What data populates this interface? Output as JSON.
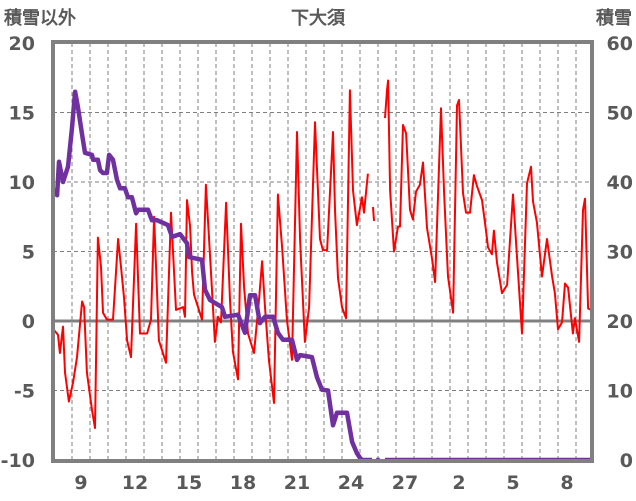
{
  "chart_data": {
    "type": "line",
    "title": "下大須",
    "ylabel_left": "積雪以外",
    "ylabel_right": "積雪",
    "x_unit": "days from start of the day labelled 9",
    "xlim": [
      -1.1,
      28.9
    ],
    "ylim_left": [
      -10,
      20
    ],
    "ylim_right": [
      0,
      60
    ],
    "yticks_left": [
      "20",
      "15",
      "10",
      "5",
      "0",
      "-5",
      "-10"
    ],
    "yticks_right": [
      "60",
      "50",
      "40",
      "30",
      "20",
      "10",
      "0"
    ],
    "xtick_labels": [
      "9",
      "12",
      "15",
      "18",
      "21",
      "24",
      "27",
      "2",
      "5",
      "8"
    ],
    "xtick_positions": [
      0.5,
      3.5,
      6.5,
      9.5,
      12.5,
      15.5,
      18.5,
      21.5,
      24.5,
      27.5
    ],
    "grid": true,
    "series": [
      {
        "name": "積雪以外",
        "axis": "left",
        "color": "#ff0000",
        "points": [
          [
            -1.0,
            -0.65
          ],
          [
            -0.78,
            -1.0
          ],
          [
            -0.67,
            -2.3
          ],
          [
            -0.5,
            -0.4
          ],
          [
            -0.39,
            -3.7
          ],
          [
            -0.17,
            -5.8
          ],
          [
            0.06,
            -4.4
          ],
          [
            0.28,
            -2.6
          ],
          [
            0.56,
            1.4
          ],
          [
            0.67,
            1.0
          ],
          [
            0.83,
            -3.7
          ],
          [
            1.11,
            -6.4
          ],
          [
            1.28,
            -7.7
          ],
          [
            1.44,
            6.0
          ],
          [
            1.61,
            3.9
          ],
          [
            1.72,
            0.6
          ],
          [
            1.94,
            0.1
          ],
          [
            2.28,
            0.1
          ],
          [
            2.56,
            5.9
          ],
          [
            2.72,
            3.9
          ],
          [
            2.89,
            1.7
          ],
          [
            3.06,
            -1.4
          ],
          [
            3.28,
            -2.6
          ],
          [
            3.56,
            7.0
          ],
          [
            3.78,
            -0.9
          ],
          [
            4.17,
            -0.9
          ],
          [
            4.39,
            0.1
          ],
          [
            4.56,
            7.5
          ],
          [
            4.83,
            -1.4
          ],
          [
            5.22,
            -3.0
          ],
          [
            5.5,
            7.8
          ],
          [
            5.78,
            0.8
          ],
          [
            6.17,
            1.0
          ],
          [
            6.28,
            0.3
          ],
          [
            6.39,
            8.7
          ],
          [
            6.56,
            6.8
          ],
          [
            6.67,
            3.5
          ],
          [
            6.78,
            1.9
          ],
          [
            7.0,
            1.0
          ],
          [
            7.22,
            0.1
          ],
          [
            7.44,
            9.8
          ],
          [
            7.56,
            7.1
          ],
          [
            7.72,
            3.5
          ],
          [
            7.94,
            -1.5
          ],
          [
            8.11,
            0.3
          ],
          [
            8.28,
            -0.1
          ],
          [
            8.56,
            8.5
          ],
          [
            8.78,
            1.5
          ],
          [
            8.94,
            -2.2
          ],
          [
            9.22,
            -4.2
          ],
          [
            9.39,
            7.0
          ],
          [
            9.56,
            2.4
          ],
          [
            9.78,
            -0.9
          ],
          [
            10.11,
            -2.3
          ],
          [
            10.39,
            1.5
          ],
          [
            10.56,
            4.3
          ],
          [
            10.72,
            1.0
          ],
          [
            10.94,
            -2.8
          ],
          [
            11.22,
            -5.9
          ],
          [
            11.44,
            9.1
          ],
          [
            11.67,
            5.3
          ],
          [
            11.94,
            0.1
          ],
          [
            12.22,
            -2.8
          ],
          [
            12.5,
            13.6
          ],
          [
            12.67,
            5.8
          ],
          [
            12.94,
            -1.5
          ],
          [
            13.17,
            1.0
          ],
          [
            13.5,
            14.3
          ],
          [
            13.78,
            5.9
          ],
          [
            13.94,
            5.1
          ],
          [
            14.17,
            5.1
          ],
          [
            14.5,
            13.6
          ],
          [
            14.61,
            8.0
          ],
          [
            14.78,
            3.1
          ],
          [
            15.0,
            1.0
          ],
          [
            15.22,
            0.2
          ],
          [
            15.44,
            16.6
          ],
          [
            15.61,
            9.4
          ],
          [
            15.83,
            6.9
          ],
          [
            16.11,
            8.9
          ],
          [
            16.22,
            7.8
          ],
          [
            16.44,
            10.6
          ],
          null,
          [
            16.72,
            8.2
          ],
          [
            16.78,
            7.2
          ],
          null,
          [
            17.39,
            14.6
          ],
          [
            17.5,
            16.6
          ],
          [
            17.56,
            17.3
          ],
          [
            17.67,
            9.4
          ],
          [
            17.89,
            5.0
          ],
          [
            18.11,
            6.8
          ],
          [
            18.22,
            6.8
          ],
          [
            18.39,
            14.1
          ],
          [
            18.56,
            13.5
          ],
          [
            18.78,
            8.0
          ],
          [
            18.94,
            7.3
          ],
          [
            19.11,
            9.3
          ],
          [
            19.33,
            9.8
          ],
          [
            19.5,
            11.4
          ],
          [
            19.72,
            6.7
          ],
          [
            20.0,
            4.5
          ],
          [
            20.17,
            2.8
          ],
          [
            20.5,
            15.3
          ],
          [
            20.67,
            9.2
          ],
          [
            20.89,
            3.2
          ],
          [
            21.17,
            0.6
          ],
          [
            21.39,
            15.5
          ],
          [
            21.5,
            15.9
          ],
          [
            21.72,
            9.2
          ],
          [
            21.89,
            7.8
          ],
          [
            22.11,
            7.8
          ],
          [
            22.33,
            10.5
          ],
          [
            22.5,
            9.7
          ],
          [
            22.78,
            8.7
          ],
          [
            23.0,
            6.5
          ],
          [
            23.11,
            5.3
          ],
          [
            23.33,
            4.8
          ],
          [
            23.44,
            6.5
          ],
          [
            23.61,
            4.2
          ],
          [
            23.89,
            2.0
          ],
          [
            24.17,
            2.6
          ],
          [
            24.5,
            9.1
          ],
          [
            24.72,
            4.6
          ],
          [
            25.0,
            -0.9
          ],
          [
            25.28,
            9.9
          ],
          [
            25.5,
            11.1
          ],
          [
            25.61,
            8.6
          ],
          [
            25.83,
            7.1
          ],
          [
            26.11,
            3.2
          ],
          [
            26.39,
            5.9
          ],
          [
            26.67,
            3.2
          ],
          [
            26.83,
            2.0
          ],
          [
            27.0,
            -0.6
          ],
          [
            27.22,
            -0.1
          ],
          [
            27.39,
            2.7
          ],
          [
            27.56,
            2.4
          ],
          [
            27.83,
            -0.9
          ],
          [
            27.94,
            0.2
          ],
          [
            28.17,
            -1.5
          ],
          [
            28.39,
            8.0
          ],
          [
            28.5,
            8.8
          ],
          [
            28.67,
            0.9
          ],
          [
            28.83,
            0.8
          ]
        ]
      },
      {
        "name": "積雪",
        "axis": "right",
        "color": "#7030a0",
        "points": [
          [
            -0.94,
            39.1
          ],
          [
            -0.83,
            38.1
          ],
          [
            -0.72,
            42.9
          ],
          [
            -0.5,
            40.0
          ],
          [
            -0.22,
            42.2
          ],
          [
            0.0,
            47.8
          ],
          [
            0.17,
            53.0
          ],
          [
            0.33,
            50.8
          ],
          [
            0.56,
            46.8
          ],
          [
            0.72,
            44.2
          ],
          [
            1.11,
            43.9
          ],
          [
            1.17,
            43.2
          ],
          [
            1.44,
            43.2
          ],
          [
            1.56,
            41.7
          ],
          [
            1.72,
            41.3
          ],
          [
            1.94,
            41.3
          ],
          [
            2.06,
            43.9
          ],
          [
            2.28,
            43.2
          ],
          [
            2.5,
            40.3
          ],
          [
            2.67,
            39.1
          ],
          [
            2.94,
            39.1
          ],
          [
            3.11,
            37.8
          ],
          [
            3.33,
            37.8
          ],
          [
            3.56,
            35.5
          ],
          [
            3.67,
            36.0
          ],
          [
            4.22,
            36.0
          ],
          [
            4.44,
            34.5
          ],
          [
            4.72,
            34.5
          ],
          [
            5.33,
            33.8
          ],
          [
            5.56,
            32.1
          ],
          [
            6.0,
            32.5
          ],
          [
            6.39,
            31.2
          ],
          [
            6.5,
            29.2
          ],
          [
            7.22,
            28.8
          ],
          [
            7.39,
            24.5
          ],
          [
            7.67,
            23.0
          ],
          [
            7.94,
            22.6
          ],
          [
            8.33,
            22.0
          ],
          [
            8.5,
            20.6
          ],
          [
            9.22,
            20.9
          ],
          [
            9.61,
            18.3
          ],
          [
            9.89,
            23.7
          ],
          [
            10.17,
            23.7
          ],
          [
            10.44,
            19.7
          ],
          [
            10.72,
            20.6
          ],
          [
            11.17,
            20.6
          ],
          [
            11.44,
            18.3
          ],
          [
            11.72,
            17.3
          ],
          [
            12.22,
            17.3
          ],
          [
            12.5,
            14.4
          ],
          [
            12.67,
            15.1
          ],
          [
            13.33,
            14.8
          ],
          [
            13.61,
            11.9
          ],
          [
            13.89,
            10.1
          ],
          [
            14.22,
            10.0
          ],
          [
            14.5,
            5.0
          ],
          [
            14.72,
            6.8
          ],
          [
            15.28,
            6.8
          ],
          [
            15.56,
            2.6
          ],
          [
            15.83,
            1.0
          ],
          [
            16.0,
            0.3
          ],
          [
            16.11,
            0
          ],
          [
            16.67,
            0
          ],
          null,
          [
            16.9,
            0
          ],
          [
            17.1,
            0
          ],
          null,
          [
            17.39,
            0
          ],
          [
            28.9,
            0
          ]
        ]
      }
    ]
  }
}
